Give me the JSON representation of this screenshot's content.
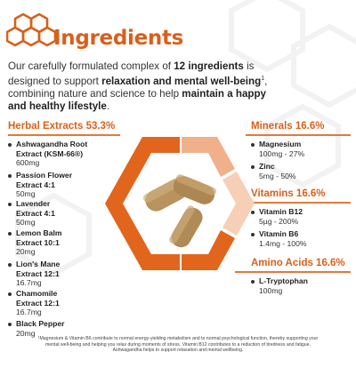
{
  "header": {
    "title": "Ingredients"
  },
  "intro": {
    "p1": "Our carefully formulated complex of ",
    "b1": "12 ingredients",
    "p2": " is designed to support ",
    "b2": "relaxation and mental well-being",
    "sup": "1",
    "p3": ", combining nature and science to help ",
    "b3": "maintain a happy and healthy lifestyle",
    "p4": "."
  },
  "herbal": {
    "heading": "Herbal Extracts 53.3%",
    "items": [
      {
        "name": "Ashwagandha Root\nExtract (KSM-66®)",
        "amount": "600mg"
      },
      {
        "name": "Passion Flower\nExtract 4:1",
        "amount": "50mg"
      },
      {
        "name": "Lavender\nExtract 4:1",
        "amount": "50mg"
      },
      {
        "name": "Lemon Balm\nExtract 10:1",
        "amount": "20mg"
      },
      {
        "name": "Lion's Mane\nExtract 12:1",
        "amount": "16.7mg"
      },
      {
        "name": "Chamomile\nExtract 12:1",
        "amount": "16.7mg"
      },
      {
        "name": "Black Pepper",
        "amount": "20mg"
      }
    ]
  },
  "minerals": {
    "heading": "Minerals 16.6%",
    "items": [
      {
        "name": "Magnesium",
        "amount": "100mg - 27%"
      },
      {
        "name": "Zinc",
        "amount": "5mg - 50%"
      }
    ]
  },
  "vitamins": {
    "heading": "Vitamins 16.6%",
    "items": [
      {
        "name": "Vitamin B12",
        "amount": "5µg - 200%"
      },
      {
        "name": "Vitamin B6",
        "amount": "1.4mg - 100%"
      }
    ]
  },
  "amino": {
    "heading": "Amino Acids 16.6%",
    "items": [
      {
        "name": "L-Tryptophan",
        "amount": "100mg"
      }
    ]
  },
  "footnote": "¹Magnesium & Vitamin B6 contribute to normal energy-yielding metabolism and to normal psychological function, thereby supporting your mental well-being and helping you relax during moments of stress. Vitamin B12 contributes to a reduction of tiredness and fatigue. Ashwagandha helps to support relaxation and mental wellbeing.",
  "colors": {
    "accent": "#d9601a",
    "accent_light": "#f0b08a",
    "accent_pale": "#f8d9c5",
    "capsule": "#b8935f",
    "text": "#2d2d2d"
  },
  "icons": {
    "logo": "honeycomb-icon",
    "capsules": "capsules-image"
  }
}
